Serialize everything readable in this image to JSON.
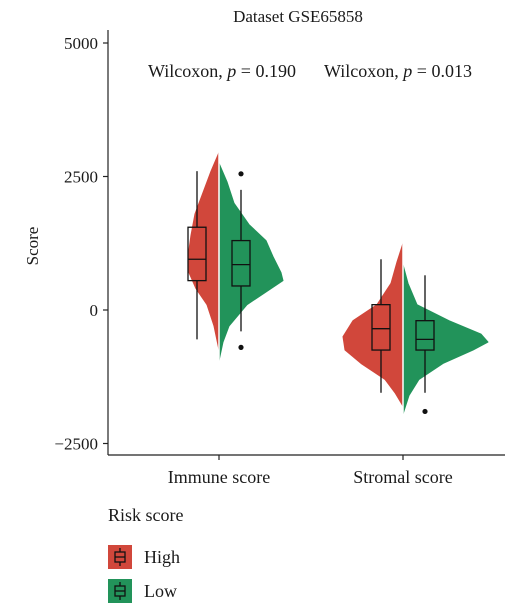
{
  "chart_data": {
    "type": "violin",
    "title": "Dataset GSE65858",
    "ylabel": "Score",
    "xlabel": "",
    "ylim": [
      -2500,
      5000
    ],
    "yticks": [
      -2500,
      0,
      2500,
      5000
    ],
    "ytick_labels": [
      "−2500",
      "0",
      "2500",
      "5000"
    ],
    "categories": [
      "Immune score",
      "Stromal score"
    ],
    "annotations": [
      "Wilcoxon, p = 0.190",
      "Wilcoxon, p = 0.013"
    ],
    "legend": {
      "title": "Risk score",
      "placement": "bottom-left",
      "entries": [
        {
          "name": "High",
          "color": "#d1473b"
        },
        {
          "name": "Low",
          "color": "#22935a"
        }
      ]
    },
    "series": [
      {
        "name": "High",
        "color": "#d1473b",
        "boxes": [
          {
            "category": "Immune score",
            "whisker_low": -550,
            "q1": 550,
            "median": 950,
            "q3": 1550,
            "whisker_high": 2600,
            "outliers": []
          },
          {
            "category": "Stromal score",
            "whisker_low": -1550,
            "q1": -750,
            "median": -350,
            "q3": 100,
            "whisker_high": 950,
            "outliers": []
          }
        ],
        "density_extent": [
          {
            "category": "Immune score",
            "min": -750,
            "max": 2950
          },
          {
            "category": "Stromal score",
            "min": -1800,
            "max": 1250
          }
        ]
      },
      {
        "name": "Low",
        "color": "#22935a",
        "boxes": [
          {
            "category": "Immune score",
            "whisker_low": -400,
            "q1": 450,
            "median": 850,
            "q3": 1300,
            "whisker_high": 2250,
            "outliers": [
              2550,
              -700
            ]
          },
          {
            "category": "Stromal score",
            "whisker_low": -1550,
            "q1": -750,
            "median": -550,
            "q3": -200,
            "whisker_high": 650,
            "outliers": [
              -1900
            ]
          }
        ],
        "density_extent": [
          {
            "category": "Immune score",
            "min": -950,
            "max": 2750
          },
          {
            "category": "Stromal score",
            "min": -1950,
            "max": 850
          }
        ]
      }
    ]
  }
}
